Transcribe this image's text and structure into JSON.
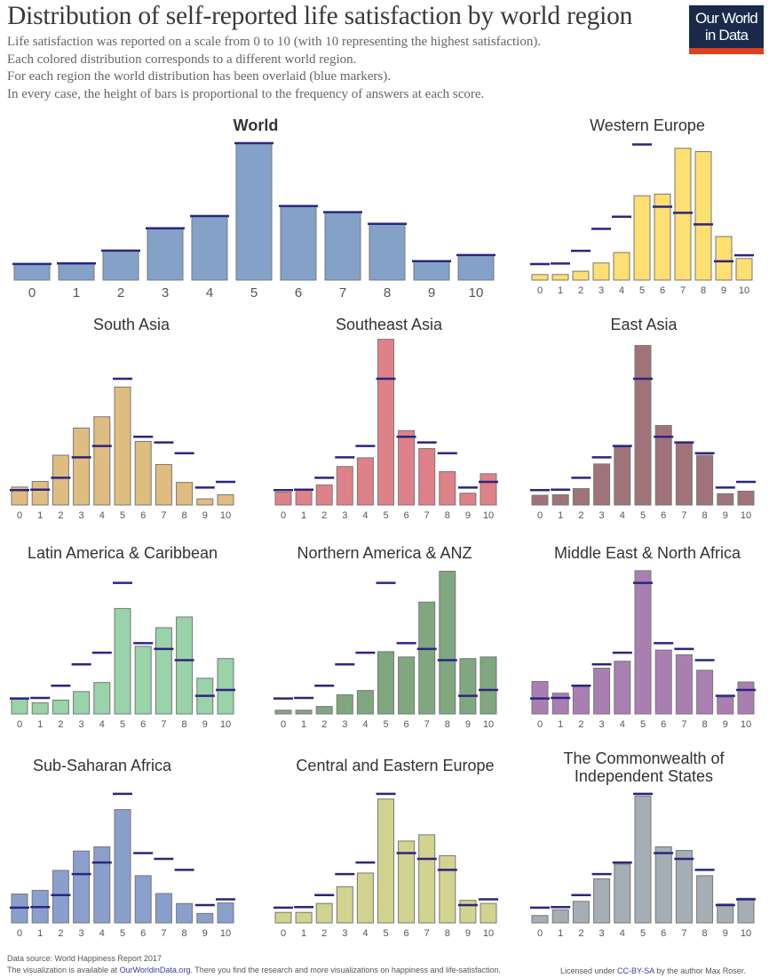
{
  "header": {
    "title": "Distribution of self-reported life satisfaction by world region",
    "subtitle_lines": [
      "Life satisfaction was reported on a scale from 0 to 10 (with 10 representing the highest satisfaction).",
      "Each colored distribution corresponds to a different world region.",
      "For each region the world distribution has been overlaid (blue markers).",
      "In every case, the height of bars is proportional to the frequency of answers at each score."
    ]
  },
  "logo": {
    "line1": "Our World",
    "line2": "in Data",
    "bg_color": "#1b2a4a",
    "accent_color": "#e0401c"
  },
  "marker_color": "#2c2580",
  "chart_data": [
    {
      "type": "bar",
      "title": "World",
      "categories": [
        "0",
        "1",
        "2",
        "3",
        "4",
        "5",
        "6",
        "7",
        "8",
        "9",
        "10"
      ],
      "color": "#84a2c8",
      "values": [
        2.9,
        3.0,
        5.3,
        9.3,
        11.5,
        24.6,
        13.3,
        12.2,
        10.1,
        3.4,
        4.5
      ],
      "overlay_values": [
        2.9,
        3.0,
        5.3,
        9.3,
        11.5,
        24.6,
        13.3,
        12.2,
        10.1,
        3.4,
        4.5
      ]
    },
    {
      "type": "bar",
      "title": "Western Europe",
      "categories": [
        "0",
        "1",
        "2",
        "3",
        "4",
        "5",
        "6",
        "7",
        "8",
        "9",
        "10"
      ],
      "color": "#fddf72",
      "values": [
        1.0,
        1.0,
        1.6,
        3.1,
        5.0,
        15.3,
        15.6,
        23.9,
        23.3,
        7.9,
        3.9
      ],
      "overlay_values": [
        2.9,
        3.0,
        5.3,
        9.3,
        11.5,
        24.6,
        13.3,
        12.2,
        10.1,
        3.4,
        4.5
      ]
    },
    {
      "type": "bar",
      "title": "South Asia",
      "categories": [
        "0",
        "1",
        "2",
        "3",
        "4",
        "5",
        "6",
        "7",
        "8",
        "9",
        "10"
      ],
      "color": "#dfbd80",
      "values": [
        3.5,
        4.6,
        9.7,
        15.0,
        17.2,
        23.0,
        12.4,
        7.9,
        4.4,
        1.2,
        2.0
      ],
      "overlay_values": [
        2.9,
        3.0,
        5.3,
        9.3,
        11.5,
        24.6,
        13.3,
        12.2,
        10.1,
        3.4,
        4.5
      ]
    },
    {
      "type": "bar",
      "title": "Southeast Asia",
      "categories": [
        "0",
        "1",
        "2",
        "3",
        "4",
        "5",
        "6",
        "7",
        "8",
        "9",
        "10"
      ],
      "color": "#df8189",
      "values": [
        2.5,
        3.0,
        3.9,
        7.5,
        9.2,
        32.3,
        14.5,
        11.0,
        6.5,
        2.3,
        6.1
      ],
      "overlay_values": [
        2.9,
        3.0,
        5.3,
        9.3,
        11.5,
        24.6,
        13.3,
        12.2,
        10.1,
        3.4,
        4.5
      ]
    },
    {
      "type": "bar",
      "title": "East Asia",
      "categories": [
        "0",
        "1",
        "2",
        "3",
        "4",
        "5",
        "6",
        "7",
        "8",
        "9",
        "10"
      ],
      "color": "#a0737a",
      "values": [
        1.9,
        2.0,
        3.2,
        8.0,
        11.3,
        31.1,
        15.5,
        12.1,
        9.7,
        2.2,
        2.7
      ],
      "overlay_values": [
        2.9,
        3.0,
        5.3,
        9.3,
        11.5,
        24.6,
        13.3,
        12.2,
        10.1,
        3.4,
        4.5
      ]
    },
    {
      "type": "bar",
      "title": "Latin America & Caribbean",
      "categories": [
        "0",
        "1",
        "2",
        "3",
        "4",
        "5",
        "6",
        "7",
        "8",
        "9",
        "10"
      ],
      "color": "#9ad2aa",
      "values": [
        2.8,
        2.1,
        2.6,
        4.2,
        5.9,
        19.8,
        12.7,
        16.2,
        18.2,
        6.7,
        10.4
      ],
      "overlay_values": [
        2.9,
        3.0,
        5.3,
        9.3,
        11.5,
        24.6,
        13.3,
        12.2,
        10.1,
        3.4,
        4.5
      ]
    },
    {
      "type": "bar",
      "title": "Northern America & ANZ",
      "categories": [
        "0",
        "1",
        "2",
        "3",
        "4",
        "5",
        "6",
        "7",
        "8",
        "9",
        "10"
      ],
      "color": "#80a77f",
      "values": [
        0.7,
        0.7,
        1.4,
        3.6,
        4.4,
        11.7,
        10.7,
        21.0,
        26.8,
        10.4,
        10.7
      ],
      "overlay_values": [
        2.9,
        3.0,
        5.3,
        9.3,
        11.5,
        24.6,
        13.3,
        12.2,
        10.1,
        3.4,
        4.5
      ]
    },
    {
      "type": "bar",
      "title": "Middle East & North Africa",
      "categories": [
        "0",
        "1",
        "2",
        "3",
        "4",
        "5",
        "6",
        "7",
        "8",
        "9",
        "10"
      ],
      "color": "#a97fb2",
      "values": [
        6.1,
        3.9,
        5.3,
        8.6,
        9.9,
        26.9,
        12.0,
        11.1,
        8.2,
        3.1,
        6.0
      ],
      "overlay_values": [
        2.9,
        3.0,
        5.3,
        9.3,
        11.5,
        24.6,
        13.3,
        12.2,
        10.1,
        3.4,
        4.5
      ]
    },
    {
      "type": "bar",
      "title": "Sub-Saharan Africa",
      "categories": [
        "0",
        "1",
        "2",
        "3",
        "4",
        "5",
        "6",
        "7",
        "8",
        "9",
        "10"
      ],
      "color": "#8b9fcd",
      "values": [
        5.5,
        6.2,
        10.0,
        13.7,
        14.5,
        21.6,
        9.0,
        5.6,
        3.7,
        1.8,
        3.8
      ],
      "overlay_values": [
        2.9,
        3.0,
        5.3,
        9.3,
        11.5,
        24.6,
        13.3,
        12.2,
        10.1,
        3.4,
        4.5
      ]
    },
    {
      "type": "bar",
      "title": "Central and Eastern Europe",
      "categories": [
        "0",
        "1",
        "2",
        "3",
        "4",
        "5",
        "6",
        "7",
        "8",
        "9",
        "10"
      ],
      "color": "#d2d38e",
      "values": [
        2.0,
        2.0,
        3.7,
        6.9,
        9.5,
        23.6,
        15.6,
        16.8,
        12.8,
        4.3,
        3.7
      ],
      "overlay_values": [
        2.9,
        3.0,
        5.3,
        9.3,
        11.5,
        24.6,
        13.3,
        12.2,
        10.1,
        3.4,
        4.5
      ]
    },
    {
      "type": "bar",
      "title": "The Commonwealth of Independent States",
      "title_lines": [
        "The Commonwealth of",
        "Independent States"
      ],
      "categories": [
        "0",
        "1",
        "2",
        "3",
        "4",
        "5",
        "6",
        "7",
        "8",
        "9",
        "10"
      ],
      "color": "#a5adb5",
      "values": [
        1.4,
        2.5,
        4.1,
        8.4,
        11.2,
        24.2,
        14.5,
        13.8,
        9.0,
        3.6,
        4.7
      ],
      "overlay_values": [
        2.9,
        3.0,
        5.3,
        9.3,
        11.5,
        24.6,
        13.3,
        12.2,
        10.1,
        3.4,
        4.5
      ]
    }
  ],
  "footer": {
    "source": "Data source: World Happiness Report 2017",
    "line2_prefix": "The visualization is available at ",
    "line2_link": "OurWorldinData.org",
    "line2_suffix": ". There you find the research and more visualizations on happiness and life-satisfaction.",
    "license_prefix": "Licensed under ",
    "license_link": "CC-BY-SA",
    "license_suffix": " by the author Max Roser."
  }
}
